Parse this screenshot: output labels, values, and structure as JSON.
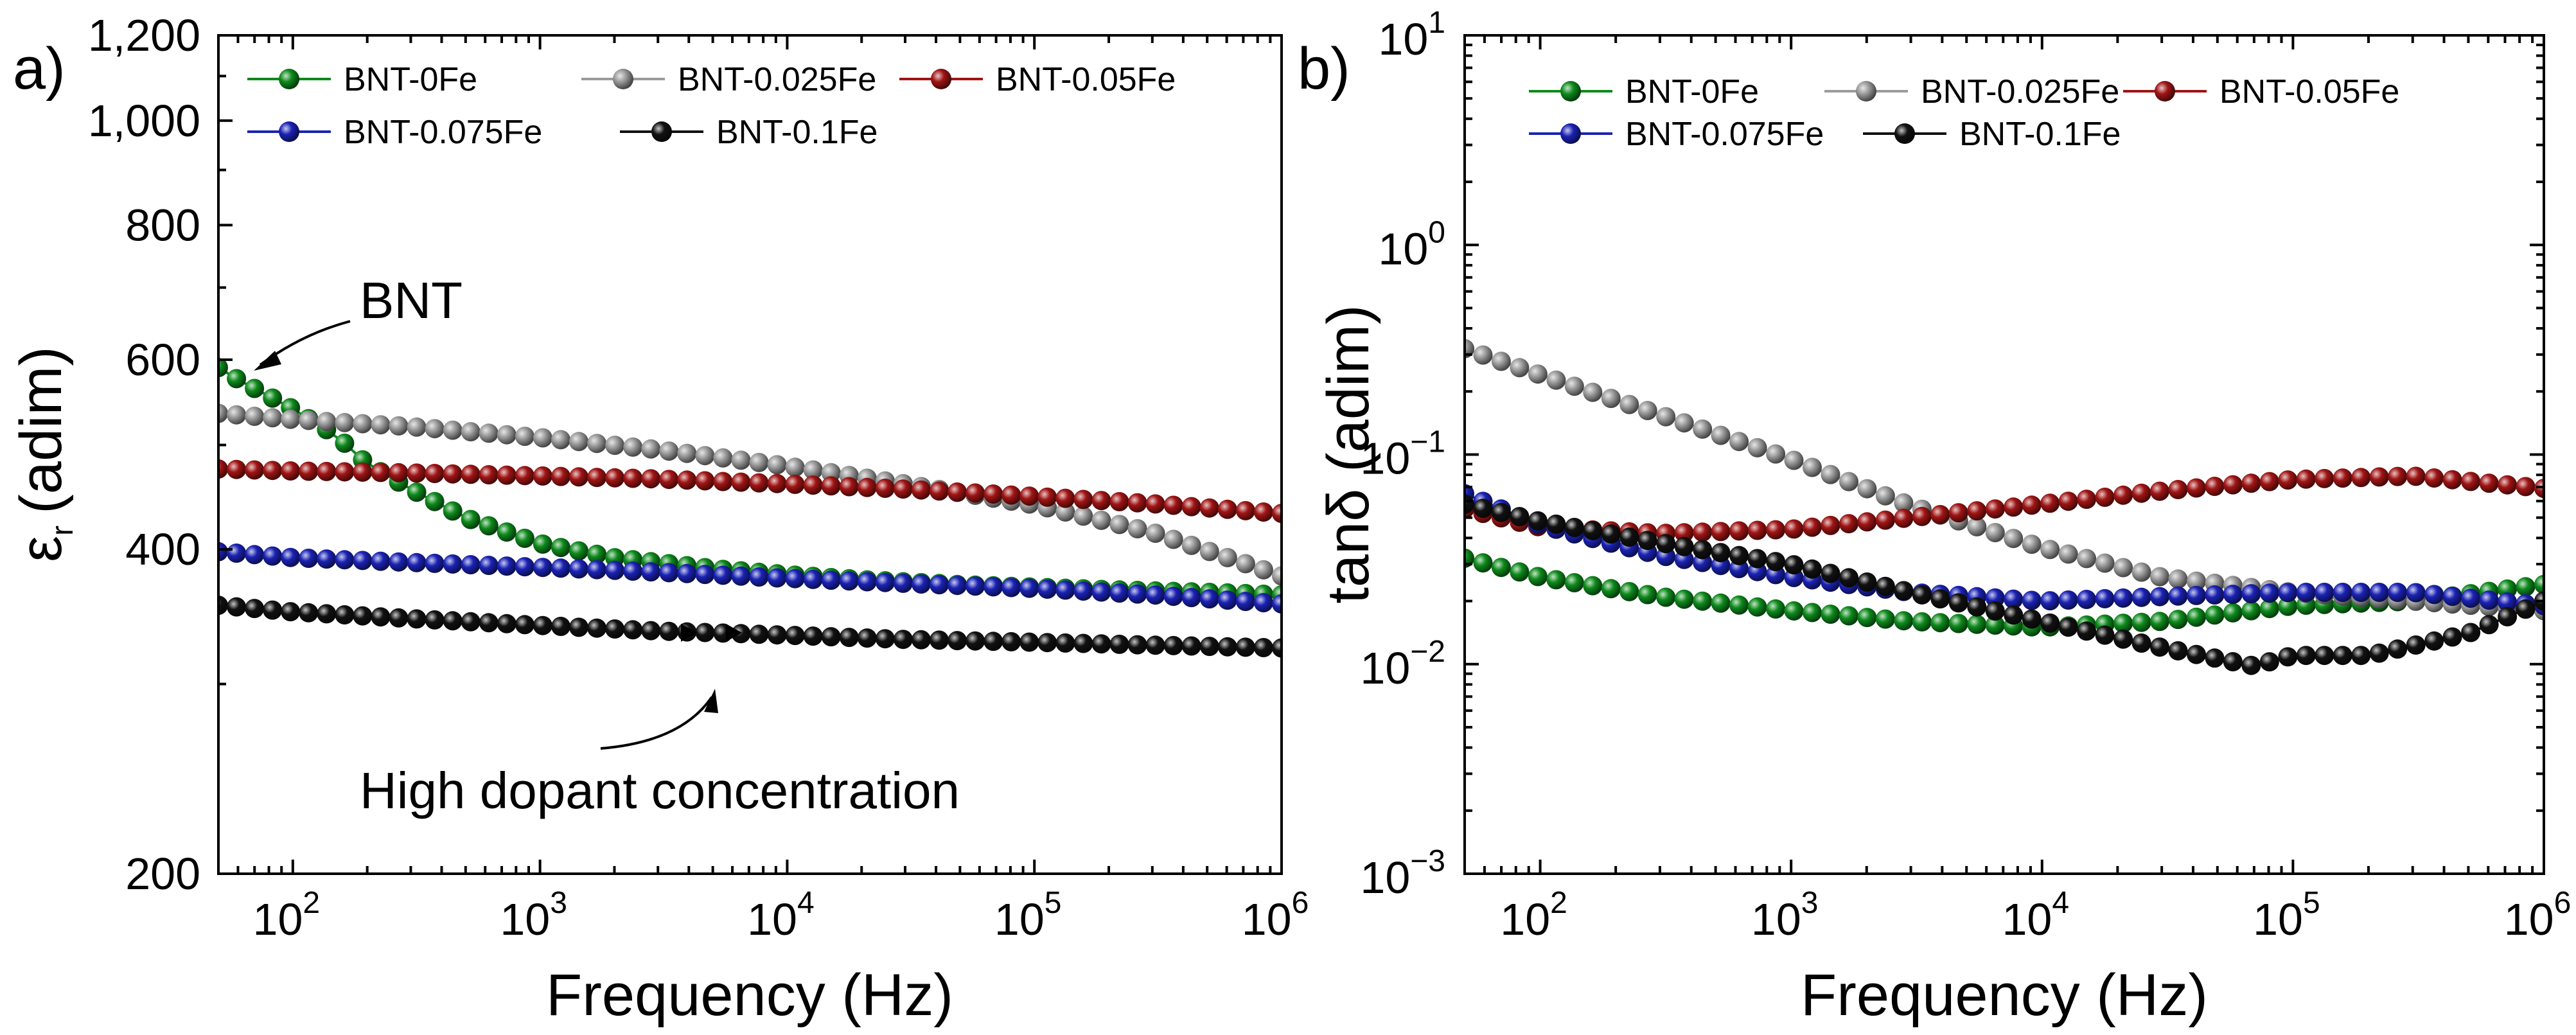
{
  "chart_data": [
    {
      "type": "line",
      "panel_label": "a)",
      "title": "",
      "xlabel": "Frequency (Hz)",
      "ylabel": "εr (adim)",
      "ylabel_symbol": "ε",
      "ylabel_subscript": "r",
      "ylabel_unit": "(adim)",
      "xscale": "log",
      "yscale": "log",
      "xlim": [
        50,
        1000000
      ],
      "ylim": [
        200,
        1200
      ],
      "x_ticks": [
        {
          "value": 100,
          "base": "10",
          "exp": "2"
        },
        {
          "value": 1000,
          "base": "10",
          "exp": "3"
        },
        {
          "value": 10000,
          "base": "10",
          "exp": "4"
        },
        {
          "value": 100000,
          "base": "10",
          "exp": "5"
        },
        {
          "value": 1000000,
          "base": "10",
          "exp": "6"
        }
      ],
      "y_ticks": [
        {
          "value": 200,
          "label": "200"
        },
        {
          "value": 400,
          "label": "400"
        },
        {
          "value": 600,
          "label": "600"
        },
        {
          "value": 800,
          "label": "800"
        },
        {
          "value": 1000,
          "label": "1,000"
        },
        {
          "value": 1200,
          "label": "1,200"
        }
      ],
      "legend_position": "top-left",
      "grid": false,
      "annotations": [
        {
          "text": "BNT",
          "x": 50,
          "y": 570
        },
        {
          "text": "High dopant concentration",
          "x": 6000,
          "y": 310
        }
      ],
      "series": [
        {
          "name": "BNT-0Fe",
          "color": "#0e8a1c",
          "x": [
            50,
            60,
            80,
            100,
            150,
            200,
            300,
            500,
            1000,
            2000,
            5000,
            10000,
            20000,
            50000,
            100000,
            200000,
            500000,
            1000000
          ],
          "y": [
            590,
            575,
            555,
            540,
            510,
            480,
            455,
            428,
            405,
            393,
            384,
            379,
            375,
            371,
            369,
            367,
            365,
            363
          ]
        },
        {
          "name": "BNT-0.025Fe",
          "color": "#9b9b9b",
          "x": [
            50,
            100,
            300,
            1000,
            3000,
            10000,
            30000,
            100000,
            300000,
            1000000
          ],
          "y": [
            535,
            528,
            520,
            508,
            495,
            478,
            460,
            440,
            415,
            378
          ]
        },
        {
          "name": "BNT-0.05Fe",
          "color": "#a01414",
          "x": [
            50,
            100,
            300,
            1000,
            3000,
            10000,
            30000,
            100000,
            300000,
            1000000
          ],
          "y": [
            475,
            473,
            471,
            468,
            465,
            460,
            455,
            448,
            441,
            432
          ]
        },
        {
          "name": "BNT-0.075Fe",
          "color": "#1a22b4",
          "x": [
            50,
            100,
            300,
            1000,
            3000,
            10000,
            30000,
            100000,
            300000,
            1000000
          ],
          "y": [
            398,
            393,
            389,
            385,
            381,
            376,
            372,
            368,
            363,
            356
          ]
        },
        {
          "name": "BNT-0.1Fe",
          "color": "#111111",
          "x": [
            50,
            100,
            300,
            1000,
            3000,
            10000,
            30000,
            100000,
            300000,
            1000000
          ],
          "y": [
            355,
            350,
            345,
            340,
            336,
            333,
            330,
            328,
            326,
            324
          ]
        }
      ]
    },
    {
      "type": "line",
      "panel_label": "b)",
      "title": "",
      "xlabel": "Frequency (Hz)",
      "ylabel": "tanδ (adim)",
      "xscale": "log",
      "yscale": "log",
      "xlim": [
        50,
        1000000
      ],
      "ylim": [
        0.001,
        10
      ],
      "x_ticks": [
        {
          "value": 100,
          "base": "10",
          "exp": "2"
        },
        {
          "value": 1000,
          "base": "10",
          "exp": "3"
        },
        {
          "value": 10000,
          "base": "10",
          "exp": "4"
        },
        {
          "value": 100000,
          "base": "10",
          "exp": "5"
        },
        {
          "value": 1000000,
          "base": "10",
          "exp": "6"
        }
      ],
      "y_ticks": [
        {
          "value": 0.001,
          "base": "10",
          "exp": "−3"
        },
        {
          "value": 0.01,
          "base": "10",
          "exp": "−2"
        },
        {
          "value": 0.1,
          "base": "10",
          "exp": "−1"
        },
        {
          "value": 1,
          "base": "10",
          "exp": "0"
        },
        {
          "value": 10,
          "base": "10",
          "exp": "1"
        }
      ],
      "legend_position": "top",
      "grid": false,
      "series": [
        {
          "name": "BNT-0Fe",
          "color": "#0e8a1c",
          "x": [
            50,
            100,
            300,
            1000,
            3000,
            10000,
            30000,
            100000,
            300000,
            1000000
          ],
          "y": [
            0.032,
            0.026,
            0.021,
            0.018,
            0.016,
            0.015,
            0.016,
            0.019,
            0.02,
            0.024
          ]
        },
        {
          "name": "BNT-0.025Fe",
          "color": "#9b9b9b",
          "x": [
            50,
            100,
            300,
            1000,
            3000,
            10000,
            30000,
            100000,
            300000,
            1000000
          ],
          "y": [
            0.32,
            0.24,
            0.155,
            0.095,
            0.057,
            0.036,
            0.026,
            0.022,
            0.02,
            0.018
          ]
        },
        {
          "name": "BNT-0.05Fe",
          "color": "#a01414",
          "x": [
            50,
            100,
            300,
            1000,
            3000,
            10000,
            30000,
            100000,
            300000,
            1000000
          ],
          "y": [
            0.055,
            0.045,
            0.042,
            0.044,
            0.05,
            0.058,
            0.067,
            0.076,
            0.079,
            0.069
          ]
        },
        {
          "name": "BNT-0.075Fe",
          "color": "#1a22b4",
          "x": [
            50,
            100,
            300,
            1000,
            3000,
            10000,
            30000,
            100000,
            300000,
            1000000
          ],
          "y": [
            0.065,
            0.046,
            0.033,
            0.026,
            0.022,
            0.02,
            0.021,
            0.022,
            0.022,
            0.019
          ]
        },
        {
          "name": "BNT-0.1Fe",
          "color": "#111111",
          "x": [
            50,
            100,
            300,
            1000,
            3000,
            10000,
            30000,
            70000,
            100000,
            200000,
            500000,
            1000000
          ],
          "y": [
            0.058,
            0.048,
            0.038,
            0.03,
            0.022,
            0.016,
            0.012,
            0.0098,
            0.011,
            0.011,
            0.014,
            0.02
          ]
        }
      ]
    }
  ]
}
